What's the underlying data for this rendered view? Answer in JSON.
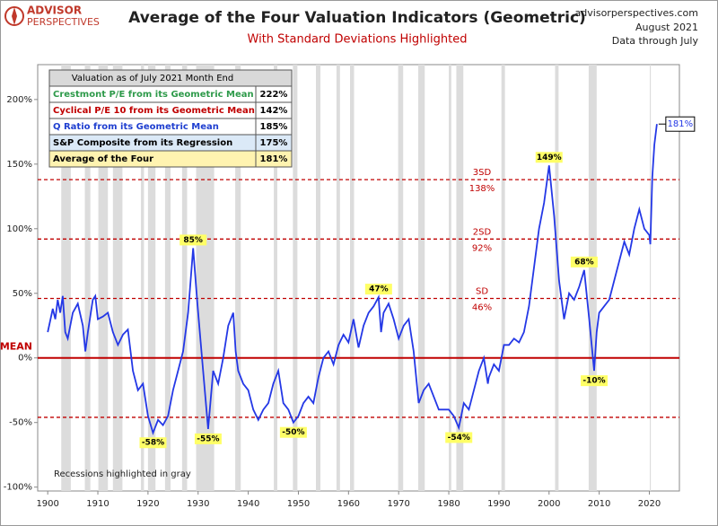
{
  "chart_data": {
    "type": "line",
    "logo": {
      "top": "ADVISOR",
      "bottom": "PERSPECTIVES"
    },
    "title": "Average of the Four Valuation Indicators (Geometric)",
    "subtitle": "With Standard Deviations Highlighted",
    "source": [
      "advisorperspectives.com",
      "August 2021",
      "Data through July"
    ],
    "note": "Recessions highlighted in gray",
    "color": "#2438e6",
    "x": [
      1900,
      1901,
      1901.5,
      1902,
      1902.5,
      1903,
      1903.5,
      1904,
      1905,
      1906,
      1907,
      1907.5,
      1908,
      1909,
      1909.5,
      1910,
      1911,
      1912,
      1913,
      1914,
      1915,
      1916,
      1917,
      1918,
      1919,
      1920,
      1921,
      1922,
      1923,
      1924,
      1925,
      1926,
      1927,
      1928,
      1929,
      1929.8,
      1930,
      1931,
      1932,
      1933,
      1934,
      1935,
      1936,
      1937,
      1937.5,
      1938,
      1939,
      1940,
      1941,
      1942,
      1943,
      1944,
      1945,
      1946,
      1947,
      1948,
      1949,
      1950,
      1951,
      1952,
      1953,
      1954,
      1955,
      1956,
      1957,
      1958,
      1959,
      1960,
      1961,
      1962,
      1963,
      1964,
      1965,
      1966,
      1966.5,
      1967,
      1968,
      1969,
      1970,
      1971,
      1972,
      1973,
      1974,
      1975,
      1976,
      1977,
      1978,
      1979,
      1980,
      1981,
      1982,
      1983,
      1984,
      1985,
      1986,
      1987,
      1987.8,
      1988,
      1989,
      1990,
      1991,
      1992,
      1993,
      1994,
      1995,
      1996,
      1997,
      1998,
      1999,
      2000,
      2001,
      2002,
      2003,
      2004,
      2005,
      2006,
      2007,
      2008,
      2009,
      2009.5,
      2010,
      2011,
      2012,
      2013,
      2014,
      2015,
      2016,
      2017,
      2018,
      2019,
      2020,
      2020.2,
      2020.6,
      2021,
      2021.5
    ],
    "values": [
      20,
      38,
      30,
      45,
      35,
      48,
      20,
      15,
      35,
      42,
      25,
      5,
      20,
      45,
      48,
      30,
      32,
      35,
      20,
      10,
      18,
      22,
      -10,
      -25,
      -20,
      -45,
      -58,
      -48,
      -52,
      -45,
      -25,
      -10,
      5,
      35,
      85,
      45,
      35,
      -10,
      -55,
      -10,
      -20,
      0,
      25,
      35,
      5,
      -10,
      -20,
      -25,
      -40,
      -48,
      -40,
      -35,
      -20,
      -10,
      -35,
      -40,
      -50,
      -45,
      -35,
      -30,
      -35,
      -15,
      0,
      5,
      -5,
      10,
      18,
      12,
      30,
      8,
      25,
      35,
      40,
      47,
      20,
      35,
      42,
      30,
      15,
      25,
      30,
      5,
      -35,
      -25,
      -20,
      -30,
      -40,
      -40,
      -40,
      -45,
      -54,
      -35,
      -40,
      -25,
      -10,
      0,
      -20,
      -15,
      -5,
      -10,
      10,
      10,
      15,
      12,
      20,
      40,
      70,
      100,
      120,
      149,
      110,
      60,
      30,
      50,
      45,
      55,
      68,
      30,
      -10,
      20,
      35,
      40,
      45,
      60,
      75,
      90,
      80,
      100,
      115,
      100,
      95,
      88,
      140,
      165,
      181
    ],
    "xlim": [
      1898,
      2026
    ],
    "xticks": [
      1900,
      1910,
      1920,
      1930,
      1940,
      1950,
      1960,
      1970,
      1980,
      1990,
      2000,
      2010,
      2020
    ],
    "ylim": [
      -103,
      227
    ],
    "yticks": [
      {
        "value": -100,
        "label": "-100%"
      },
      {
        "value": -50,
        "label": "-50%"
      },
      {
        "value": 0,
        "label": "0%"
      },
      {
        "value": 50,
        "label": "50%"
      },
      {
        "value": 100,
        "label": "100%"
      },
      {
        "value": 150,
        "label": "150%"
      },
      {
        "value": 200,
        "label": "200%"
      }
    ],
    "recessions": [
      [
        1902.7,
        1904.6
      ],
      [
        1907.4,
        1908.5
      ],
      [
        1910.1,
        1912.0
      ],
      [
        1913.0,
        1914.9
      ],
      [
        1918.6,
        1919.2
      ],
      [
        1920.0,
        1921.5
      ],
      [
        1923.4,
        1924.5
      ],
      [
        1926.8,
        1927.8
      ],
      [
        1929.6,
        1933.2
      ],
      [
        1937.4,
        1938.5
      ],
      [
        1945.1,
        1945.8
      ],
      [
        1948.9,
        1949.8
      ],
      [
        1953.5,
        1954.4
      ],
      [
        1957.6,
        1958.3
      ],
      [
        1960.3,
        1961.1
      ],
      [
        1969.9,
        1970.9
      ],
      [
        1973.9,
        1975.2
      ],
      [
        1980.0,
        1980.5
      ],
      [
        1981.5,
        1982.9
      ],
      [
        1990.5,
        1991.2
      ],
      [
        2001.2,
        2001.9
      ],
      [
        2007.9,
        2009.5
      ],
      [
        2020.1,
        2020.3
      ]
    ],
    "reference_lines": [
      {
        "value": 138,
        "label": "3SD",
        "value_label": "138%"
      },
      {
        "value": 92,
        "label": "2SD",
        "value_label": "92%"
      },
      {
        "value": 46,
        "label": "SD",
        "value_label": "46%"
      },
      {
        "value": 0,
        "label": "MEAN"
      },
      {
        "value": -46
      }
    ],
    "annotations": [
      {
        "x": 1929,
        "y": 85,
        "label": "85%"
      },
      {
        "x": 1921,
        "y": -58,
        "label": "-58%"
      },
      {
        "x": 1932,
        "y": -55,
        "label": "-55%"
      },
      {
        "x": 1949,
        "y": -50,
        "label": "-50%"
      },
      {
        "x": 1966,
        "y": 47,
        "label": "47%"
      },
      {
        "x": 1982,
        "y": -54,
        "label": "-54%"
      },
      {
        "x": 2000,
        "y": 149,
        "label": "149%"
      },
      {
        "x": 2007,
        "y": 68,
        "label": "68%"
      },
      {
        "x": 2009,
        "y": -10,
        "label": "-10%"
      },
      {
        "x": 2021.5,
        "y": 181,
        "label": "181%"
      }
    ],
    "table": {
      "header": "Valuation as of July 2021  Month End",
      "rows": [
        {
          "label": "Crestmont P/E from its Geometric Mean",
          "value": "222%"
        },
        {
          "label": "Cyclical P/E 10 from its Geometric Mean",
          "value": "142%"
        },
        {
          "label": "Q Ratio from its Geometric Mean",
          "value": "185%"
        },
        {
          "label": "S&P Composite from its Regression",
          "value": "175%"
        },
        {
          "label": "Average of the Four",
          "value": "181%"
        }
      ]
    }
  }
}
